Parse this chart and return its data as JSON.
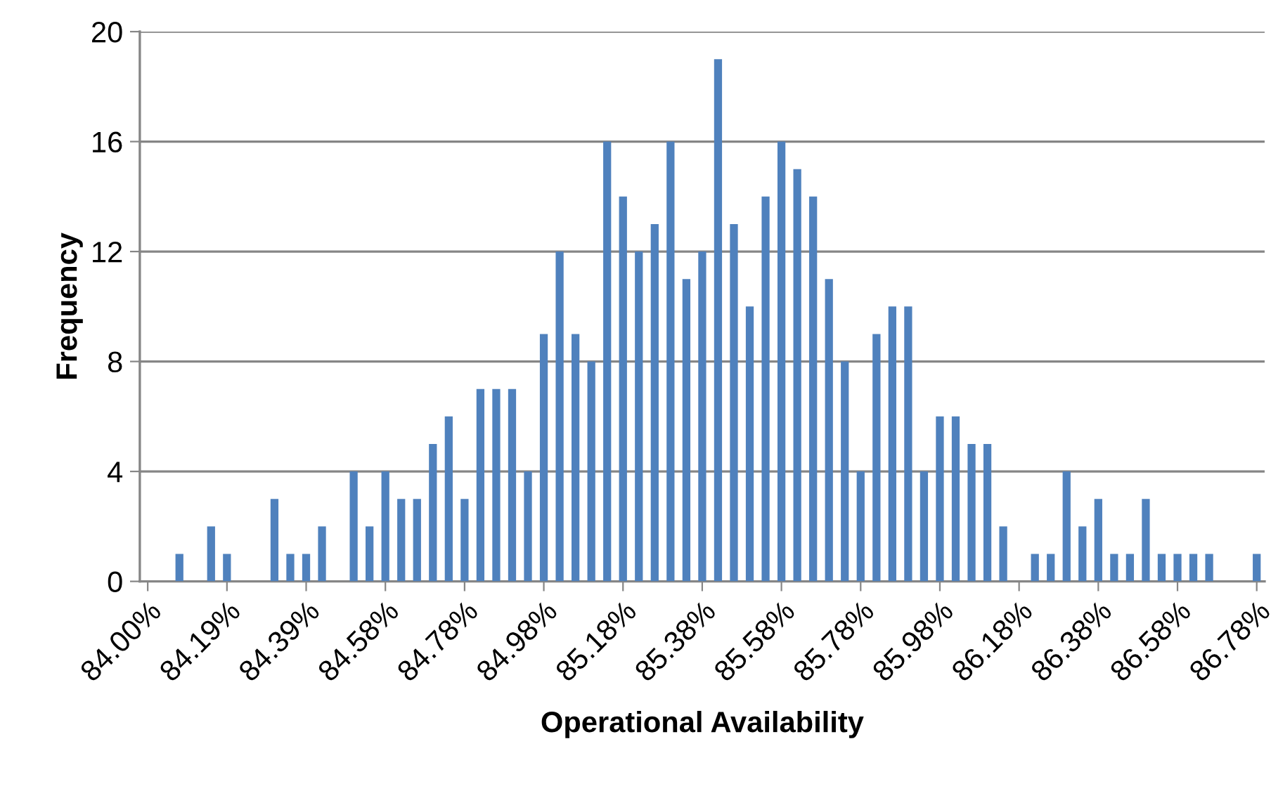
{
  "chart_data": {
    "type": "bar",
    "xlabel": "Operational Availability",
    "ylabel": "Frequency",
    "categories": [
      "84.00%",
      null,
      null,
      null,
      null,
      "84.19%",
      null,
      null,
      null,
      null,
      "84.39%",
      null,
      null,
      null,
      null,
      "84.58%",
      null,
      null,
      null,
      null,
      "84.78%",
      null,
      null,
      null,
      null,
      "84.98%",
      null,
      null,
      null,
      null,
      "85.18%",
      null,
      null,
      null,
      null,
      "85.38%",
      null,
      null,
      null,
      null,
      "85.58%",
      null,
      null,
      null,
      null,
      "85.78%",
      null,
      null,
      null,
      null,
      "85.98%",
      null,
      null,
      null,
      null,
      "86.18%",
      null,
      null,
      null,
      null,
      "86.38%",
      null,
      null,
      null,
      null,
      "86.58%",
      null,
      null,
      null,
      null,
      "86.78%"
    ],
    "values": [
      0,
      0,
      1,
      0,
      2,
      1,
      0,
      0,
      3,
      1,
      1,
      2,
      0,
      4,
      2,
      4,
      3,
      3,
      5,
      6,
      3,
      7,
      7,
      7,
      4,
      9,
      12,
      9,
      8,
      16,
      14,
      12,
      13,
      16,
      11,
      12,
      19,
      13,
      10,
      14,
      16,
      15,
      14,
      11,
      8,
      4,
      9,
      10,
      10,
      4,
      6,
      6,
      5,
      5,
      2,
      0,
      1,
      1,
      4,
      2,
      3,
      1,
      1,
      3,
      1,
      1,
      1,
      1,
      0,
      0,
      1
    ],
    "color": "#4f81bd",
    "ylim": [
      0,
      20
    ],
    "yticks": [
      0,
      4,
      8,
      12,
      16,
      20
    ],
    "grid": "y",
    "legend": false
  }
}
